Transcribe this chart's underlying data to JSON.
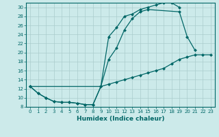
{
  "xlabel": "Humidex (Indice chaleur)",
  "bg_color": "#cceaea",
  "line_color": "#006666",
  "grid_color": "#aacccc",
  "xlim": [
    -0.5,
    23.5
  ],
  "ylim": [
    8,
    31
  ],
  "yticks": [
    8,
    10,
    12,
    14,
    16,
    18,
    20,
    22,
    24,
    26,
    28,
    30
  ],
  "xticks": [
    0,
    1,
    2,
    3,
    4,
    5,
    6,
    7,
    8,
    9,
    10,
    11,
    12,
    13,
    14,
    15,
    16,
    17,
    18,
    19,
    20,
    21,
    22,
    23
  ],
  "curve1_x": [
    0,
    1,
    2,
    3,
    4,
    5,
    6,
    7,
    8,
    9,
    10,
    11,
    12,
    13,
    14,
    15,
    16,
    17,
    18,
    19
  ],
  "curve1_y": [
    12.5,
    11.0,
    10.0,
    9.2,
    9.0,
    9.0,
    8.8,
    8.5,
    8.5,
    12.5,
    23.5,
    25.5,
    28.0,
    28.5,
    29.5,
    30.0,
    30.5,
    31.0,
    31.0,
    30.0
  ],
  "curve2_x": [
    0,
    1,
    2,
    3,
    4,
    5,
    6,
    7,
    8,
    9,
    10,
    11,
    12,
    13,
    14,
    15,
    19,
    20,
    21
  ],
  "curve2_y": [
    12.5,
    11.0,
    10.0,
    9.2,
    9.0,
    9.0,
    8.8,
    8.5,
    8.5,
    12.5,
    18.5,
    21.0,
    25.0,
    27.5,
    29.0,
    29.5,
    29.0,
    23.5,
    20.5
  ],
  "curve3_x": [
    0,
    9,
    10,
    11,
    12,
    13,
    14,
    15,
    16,
    17,
    18,
    19,
    20,
    21,
    22,
    23
  ],
  "curve3_y": [
    12.5,
    12.5,
    13.0,
    13.5,
    14.0,
    14.5,
    15.0,
    15.5,
    16.0,
    16.5,
    17.5,
    18.5,
    19.0,
    19.5,
    19.5,
    19.5
  ]
}
